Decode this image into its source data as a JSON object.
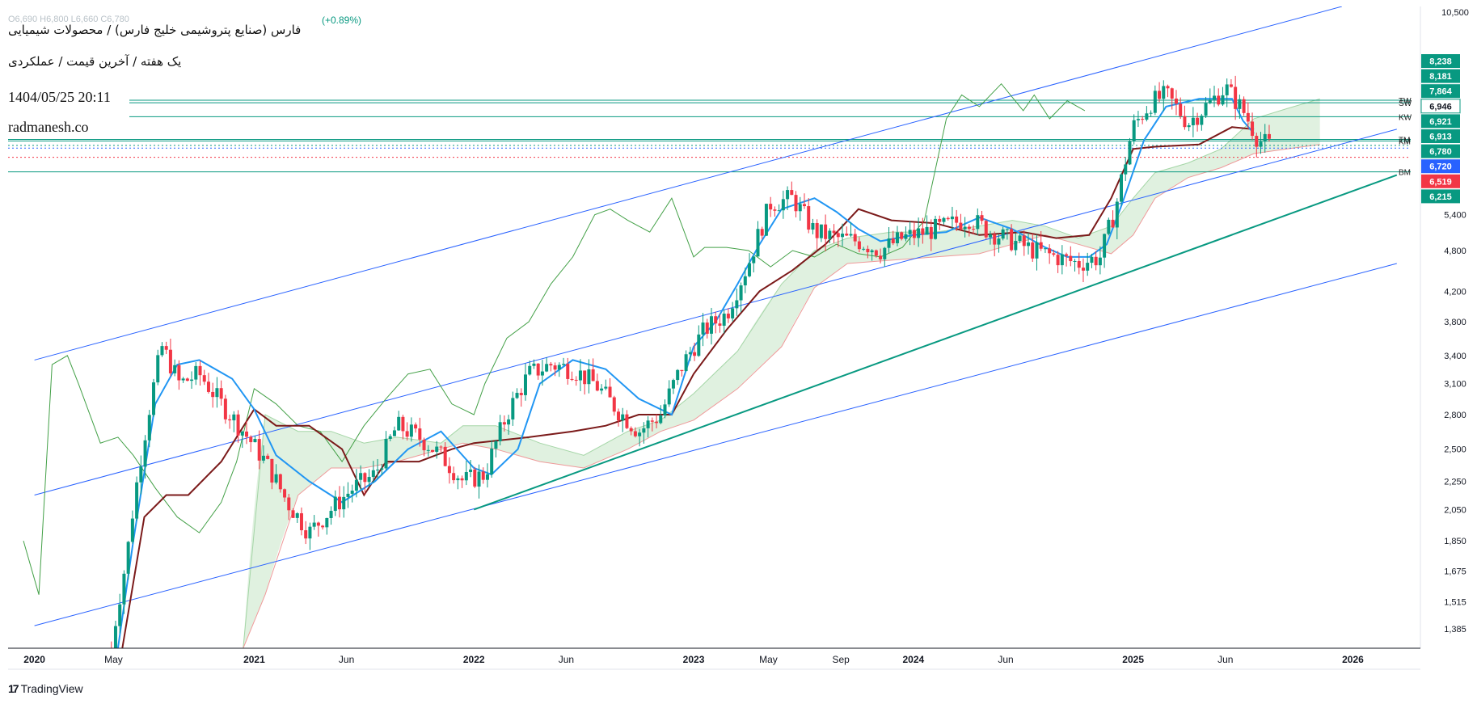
{
  "header": {
    "title": "فارس (صنایع پتروشیمی خلیج فارس) / محصولات شیمیایی",
    "subtitle": "یک هفته / آخرین قیمت / عملکردی",
    "datetime": "1404/05/25 20:11",
    "site": "radmanesh.co",
    "change": "(+0.89%)",
    "ohlc_faded": "O6,690 H6,800 L6,660 C6,780"
  },
  "footer": {
    "brand": "TradingView"
  },
  "colors": {
    "up": "#089981",
    "down": "#f23645",
    "tenkan": "#2196f3",
    "kijun": "#7b1a1a",
    "chikou": "#43a047",
    "cloud_up": "#a5d6a7",
    "cloud_down": "#ef9a9a",
    "channel": "#2962ff",
    "trend": "#089981",
    "hline": "#089981"
  },
  "chart_data": {
    "type": "candlestick",
    "scale": "log",
    "ylim": [
      1300,
      10700
    ],
    "y_ticks": [
      "10,500",
      "5,400",
      "4,800",
      "4,200",
      "3,800",
      "3,400",
      "3,100",
      "2,800",
      "2,500",
      "2,250",
      "2,050",
      "1,850",
      "1,675",
      "1,515",
      "1,385"
    ],
    "x_ticks": [
      {
        "label": "2020",
        "t": 2020.0,
        "bold": true
      },
      {
        "label": "May",
        "t": 2020.36,
        "bold": false
      },
      {
        "label": "2021",
        "t": 2021.0,
        "bold": true
      },
      {
        "label": "Jun",
        "t": 2021.42,
        "bold": false
      },
      {
        "label": "2022",
        "t": 2022.0,
        "bold": true
      },
      {
        "label": "Jun",
        "t": 2022.42,
        "bold": false
      },
      {
        "label": "2023",
        "t": 2023.0,
        "bold": true
      },
      {
        "label": "May",
        "t": 2023.34,
        "bold": false
      },
      {
        "label": "Sep",
        "t": 2023.67,
        "bold": false
      },
      {
        "label": "2024",
        "t": 2024.0,
        "bold": true
      },
      {
        "label": "Jun",
        "t": 2024.42,
        "bold": false
      },
      {
        "label": "2025",
        "t": 2025.0,
        "bold": true
      },
      {
        "label": "Jun",
        "t": 2025.42,
        "bold": false
      },
      {
        "label": "2026",
        "t": 2026.0,
        "bold": true
      }
    ],
    "price_labels": [
      {
        "text": "8,238",
        "value": 8238,
        "color": "#089981"
      },
      {
        "text": "8,181",
        "value": 8181,
        "color": "#089981"
      },
      {
        "text": "7,864",
        "value": 7864,
        "color": "#089981"
      },
      {
        "text": "6,946",
        "value": 6946,
        "color": "#ffffff"
      },
      {
        "text": "6,921",
        "value": 6921,
        "color": "#089981"
      },
      {
        "text": "6,913",
        "value": 6913,
        "color": "#089981"
      },
      {
        "text": "6,780",
        "value": 6780,
        "color": "#089981"
      },
      {
        "text": "6,720",
        "value": 6720,
        "color": "#2962ff"
      },
      {
        "text": "6,519",
        "value": 6519,
        "color": "#f23645"
      },
      {
        "text": "6,215",
        "value": 6215,
        "color": "#089981"
      }
    ],
    "level_lines": [
      {
        "label": "TW",
        "value": 7864,
        "style": "solid",
        "color": "#089981"
      },
      {
        "label": "SW",
        "value": 7800,
        "style": "solid",
        "color": "#089981"
      },
      {
        "label": "KW",
        "value": 7450,
        "style": "solid",
        "color": "#089981"
      },
      {
        "label": "TM",
        "value": 6913,
        "style": "solid",
        "color": "#089981"
      },
      {
        "label": "KM",
        "value": 6880,
        "style": "solid",
        "color": "#089981"
      },
      {
        "label": "",
        "value": 6780,
        "style": "dotted",
        "color": "#089981"
      },
      {
        "label": "",
        "value": 6720,
        "style": "dotted",
        "color": "#2962ff"
      },
      {
        "label": "",
        "value": 6519,
        "style": "dotted",
        "color": "#f23645"
      },
      {
        "label": "BM",
        "value": 6215,
        "style": "solid",
        "color": "#089981"
      }
    ],
    "channel_lines": [
      {
        "name": "upper",
        "p1": [
          2020.0,
          3350
        ],
        "p2": [
          2025.95,
          10700
        ]
      },
      {
        "name": "middle",
        "p1": [
          2020.0,
          2150
        ],
        "p2": [
          2026.2,
          7150
        ]
      },
      {
        "name": "lower",
        "p1": [
          2020.0,
          1400
        ],
        "p2": [
          2026.2,
          4600
        ]
      }
    ],
    "trend_line": {
      "p1": [
        2022.0,
        2050
      ],
      "p2": [
        2026.2,
        6150
      ]
    },
    "ichimoku": {
      "tenkan": [
        [
          2020.38,
          1300
        ],
        [
          2020.45,
          1850
        ],
        [
          2020.55,
          2900
        ],
        [
          2020.65,
          3300
        ],
        [
          2020.75,
          3350
        ],
        [
          2020.9,
          3150
        ],
        [
          2021.0,
          2850
        ],
        [
          2021.1,
          2450
        ],
        [
          2021.25,
          2250
        ],
        [
          2021.4,
          2100
        ],
        [
          2021.55,
          2250
        ],
        [
          2021.7,
          2500
        ],
        [
          2021.85,
          2650
        ],
        [
          2022.0,
          2350
        ],
        [
          2022.08,
          2300
        ],
        [
          2022.2,
          2500
        ],
        [
          2022.3,
          3100
        ],
        [
          2022.45,
          3350
        ],
        [
          2022.6,
          3250
        ],
        [
          2022.75,
          2950
        ],
        [
          2022.9,
          2800
        ],
        [
          2023.0,
          3500
        ],
        [
          2023.1,
          3800
        ],
        [
          2023.2,
          4300
        ],
        [
          2023.3,
          4900
        ],
        [
          2023.4,
          5500
        ],
        [
          2023.55,
          5700
        ],
        [
          2023.65,
          5450
        ],
        [
          2023.75,
          5150
        ],
        [
          2023.85,
          4950
        ],
        [
          2024.0,
          5050
        ],
        [
          2024.15,
          5100
        ],
        [
          2024.3,
          5350
        ],
        [
          2024.45,
          5150
        ],
        [
          2024.6,
          4850
        ],
        [
          2024.7,
          4700
        ],
        [
          2024.8,
          4700
        ],
        [
          2024.88,
          4900
        ],
        [
          2024.95,
          5600
        ],
        [
          2025.05,
          6900
        ],
        [
          2025.15,
          7700
        ],
        [
          2025.3,
          7900
        ],
        [
          2025.45,
          7900
        ],
        [
          2025.5,
          7350
        ],
        [
          2025.55,
          7050
        ]
      ],
      "kijun": [
        [
          2020.4,
          1300
        ],
        [
          2020.5,
          2000
        ],
        [
          2020.6,
          2150
        ],
        [
          2020.7,
          2150
        ],
        [
          2020.85,
          2400
        ],
        [
          2021.0,
          2850
        ],
        [
          2021.1,
          2700
        ],
        [
          2021.25,
          2700
        ],
        [
          2021.4,
          2500
        ],
        [
          2021.5,
          2150
        ],
        [
          2021.6,
          2400
        ],
        [
          2021.75,
          2400
        ],
        [
          2021.9,
          2500
        ],
        [
          2022.0,
          2550
        ],
        [
          2022.25,
          2600
        ],
        [
          2022.45,
          2650
        ],
        [
          2022.6,
          2700
        ],
        [
          2022.75,
          2800
        ],
        [
          2022.9,
          2800
        ],
        [
          2023.0,
          3200
        ],
        [
          2023.15,
          3700
        ],
        [
          2023.3,
          4200
        ],
        [
          2023.45,
          4500
        ],
        [
          2023.6,
          4900
        ],
        [
          2023.75,
          5500
        ],
        [
          2023.9,
          5300
        ],
        [
          2024.1,
          5250
        ],
        [
          2024.3,
          5050
        ],
        [
          2024.5,
          5100
        ],
        [
          2024.65,
          5000
        ],
        [
          2024.8,
          5050
        ],
        [
          2024.9,
          5700
        ],
        [
          2025.0,
          6700
        ],
        [
          2025.1,
          6750
        ],
        [
          2025.3,
          6800
        ],
        [
          2025.45,
          7200
        ],
        [
          2025.55,
          7150
        ]
      ],
      "chikou": [
        [
          2019.95,
          1850
        ],
        [
          2020.02,
          1550
        ],
        [
          2020.08,
          3300
        ],
        [
          2020.15,
          3400
        ],
        [
          2020.2,
          3100
        ],
        [
          2020.3,
          2550
        ],
        [
          2020.38,
          2600
        ],
        [
          2020.45,
          2450
        ],
        [
          2020.55,
          2200
        ],
        [
          2020.65,
          2000
        ],
        [
          2020.75,
          1900
        ],
        [
          2020.85,
          2100
        ],
        [
          2020.92,
          2400
        ],
        [
          2021.0,
          3050
        ],
        [
          2021.1,
          2900
        ],
        [
          2021.2,
          2700
        ],
        [
          2021.3,
          2650
        ],
        [
          2021.4,
          2400
        ],
        [
          2021.5,
          2700
        ],
        [
          2021.6,
          2950
        ],
        [
          2021.7,
          3200
        ],
        [
          2021.8,
          3250
        ],
        [
          2021.9,
          2900
        ],
        [
          2022.0,
          2800
        ],
        [
          2022.05,
          3100
        ],
        [
          2022.15,
          3600
        ],
        [
          2022.25,
          3800
        ],
        [
          2022.35,
          4300
        ],
        [
          2022.45,
          4700
        ],
        [
          2022.55,
          5400
        ],
        [
          2022.62,
          5500
        ],
        [
          2022.7,
          5300
        ],
        [
          2022.8,
          5100
        ],
        [
          2022.9,
          5700
        ],
        [
          2023.0,
          4700
        ],
        [
          2023.05,
          4850
        ],
        [
          2023.15,
          4850
        ],
        [
          2023.25,
          4800
        ],
        [
          2023.35,
          4550
        ],
        [
          2023.45,
          4800
        ],
        [
          2023.55,
          4700
        ],
        [
          2023.65,
          4900
        ],
        [
          2023.75,
          4750
        ],
        [
          2023.85,
          4700
        ],
        [
          2023.95,
          4850
        ],
        [
          2024.05,
          5300
        ],
        [
          2024.15,
          7400
        ],
        [
          2024.22,
          8000
        ],
        [
          2024.3,
          7700
        ],
        [
          2024.4,
          8300
        ],
        [
          2024.5,
          7600
        ],
        [
          2024.55,
          8000
        ],
        [
          2024.62,
          7400
        ],
        [
          2024.7,
          7850
        ],
        [
          2024.78,
          7600
        ]
      ],
      "senkou_a": [
        [
          2020.95,
          1300
        ],
        [
          2021.05,
          2800
        ],
        [
          2021.2,
          2650
        ],
        [
          2021.35,
          2650
        ],
        [
          2021.5,
          2550
        ],
        [
          2021.65,
          2600
        ],
        [
          2021.85,
          2550
        ],
        [
          2021.95,
          2700
        ],
        [
          2022.1,
          2700
        ],
        [
          2022.3,
          2550
        ],
        [
          2022.5,
          2450
        ],
        [
          2022.7,
          2650
        ],
        [
          2022.85,
          2750
        ],
        [
          2023.0,
          3000
        ],
        [
          2023.2,
          3450
        ],
        [
          2023.4,
          4300
        ],
        [
          2023.55,
          4800
        ],
        [
          2023.7,
          5000
        ],
        [
          2023.9,
          5100
        ],
        [
          2024.1,
          5100
        ],
        [
          2024.3,
          5200
        ],
        [
          2024.45,
          5300
        ],
        [
          2024.6,
          5200
        ],
        [
          2024.75,
          5000
        ],
        [
          2024.9,
          5200
        ],
        [
          2025.0,
          5700
        ],
        [
          2025.1,
          6200
        ],
        [
          2025.25,
          6400
        ],
        [
          2025.4,
          6700
        ],
        [
          2025.55,
          7400
        ],
        [
          2025.7,
          7650
        ],
        [
          2025.85,
          7900
        ]
      ],
      "senkou_b": [
        [
          2020.95,
          1300
        ],
        [
          2021.05,
          1550
        ],
        [
          2021.2,
          2150
        ],
        [
          2021.35,
          2350
        ],
        [
          2021.5,
          2350
        ],
        [
          2021.65,
          2400
        ],
        [
          2021.85,
          2500
        ],
        [
          2021.95,
          2550
        ],
        [
          2022.1,
          2500
        ],
        [
          2022.3,
          2400
        ],
        [
          2022.5,
          2350
        ],
        [
          2022.7,
          2500
        ],
        [
          2022.85,
          2650
        ],
        [
          2023.0,
          2750
        ],
        [
          2023.2,
          3050
        ],
        [
          2023.4,
          3500
        ],
        [
          2023.55,
          4250
        ],
        [
          2023.7,
          4600
        ],
        [
          2023.9,
          4650
        ],
        [
          2024.1,
          4700
        ],
        [
          2024.3,
          4750
        ],
        [
          2024.45,
          4900
        ],
        [
          2024.6,
          5050
        ],
        [
          2024.75,
          4900
        ],
        [
          2024.9,
          4750
        ],
        [
          2025.0,
          5050
        ],
        [
          2025.1,
          5700
        ],
        [
          2025.25,
          6100
        ],
        [
          2025.4,
          6300
        ],
        [
          2025.55,
          6600
        ],
        [
          2025.7,
          6700
        ],
        [
          2025.85,
          6800
        ]
      ]
    },
    "candles_path": [
      [
        2020.35,
        1300
      ],
      [
        2020.42,
        1750
      ],
      [
        2020.5,
        2600
      ],
      [
        2020.58,
        3500
      ],
      [
        2020.66,
        3100
      ],
      [
        2020.75,
        3200
      ],
      [
        2020.85,
        2900
      ],
      [
        2020.95,
        2650
      ],
      [
        2021.05,
        2400
      ],
      [
        2021.15,
        2100
      ],
      [
        2021.25,
        1900
      ],
      [
        2021.35,
        2050
      ],
      [
        2021.45,
        2200
      ],
      [
        2021.55,
        2300
      ],
      [
        2021.65,
        2700
      ],
      [
        2021.75,
        2600
      ],
      [
        2021.85,
        2450
      ],
      [
        2021.95,
        2250
      ],
      [
        2022.05,
        2300
      ],
      [
        2022.15,
        2800
      ],
      [
        2022.25,
        3200
      ],
      [
        2022.35,
        3300
      ],
      [
        2022.45,
        3250
      ],
      [
        2022.55,
        3100
      ],
      [
        2022.65,
        2850
      ],
      [
        2022.75,
        2650
      ],
      [
        2022.85,
        2800
      ],
      [
        2022.95,
        3300
      ],
      [
        2023.05,
        3700
      ],
      [
        2023.15,
        3900
      ],
      [
        2023.25,
        4600
      ],
      [
        2023.35,
        5600
      ],
      [
        2023.45,
        5700
      ],
      [
        2023.55,
        5100
      ],
      [
        2023.65,
        5000
      ],
      [
        2023.75,
        4950
      ],
      [
        2023.85,
        4800
      ],
      [
        2023.95,
        5000
      ],
      [
        2024.05,
        5100
      ],
      [
        2024.15,
        5200
      ],
      [
        2024.25,
        5350
      ],
      [
        2024.35,
        5100
      ],
      [
        2024.45,
        4950
      ],
      [
        2024.55,
        4800
      ],
      [
        2024.65,
        4700
      ],
      [
        2024.75,
        4600
      ],
      [
        2024.85,
        4700
      ],
      [
        2024.92,
        5500
      ],
      [
        2025.0,
        7200
      ],
      [
        2025.08,
        7800
      ],
      [
        2025.15,
        8000
      ],
      [
        2025.25,
        7300
      ],
      [
        2025.35,
        7800
      ],
      [
        2025.42,
        8200
      ],
      [
        2025.5,
        7600
      ],
      [
        2025.57,
        6900
      ],
      [
        2025.62,
        6780
      ]
    ]
  }
}
